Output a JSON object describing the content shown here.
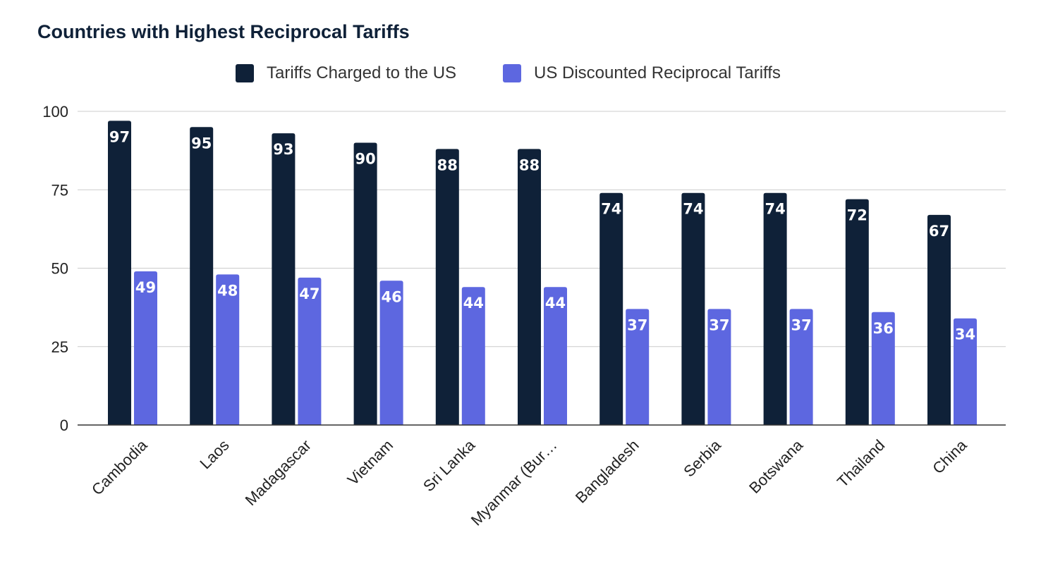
{
  "chart_data": {
    "type": "bar",
    "title": "Countries with Highest Reciprocal Tariffs",
    "xlabel": "",
    "ylabel": "",
    "ylim": [
      0,
      100
    ],
    "yticks": [
      "0",
      "25",
      "50",
      "75",
      "100"
    ],
    "ytick_values": [
      0,
      25,
      50,
      75,
      100
    ],
    "grid": true,
    "legend_position": "top-center",
    "categories": [
      "Cambodia",
      "Laos",
      "Madagascar",
      "Vietnam",
      "Sri Lanka",
      "Myanmar (Bur…",
      "Bangladesh",
      "Serbia",
      "Botswana",
      "Thailand",
      "China"
    ],
    "series": [
      {
        "name": "Tariffs Charged to the US",
        "color": "#0f2138",
        "values": [
          97,
          95,
          93,
          90,
          88,
          88,
          74,
          74,
          74,
          72,
          67
        ],
        "labels": [
          "97",
          "95",
          "93",
          "90",
          "88",
          "88",
          "74",
          "74",
          "74",
          "72",
          "67"
        ]
      },
      {
        "name": "US Discounted Reciprocal Tariffs",
        "color": "#5d67e0",
        "values": [
          49,
          48,
          47,
          46,
          44,
          44,
          37,
          37,
          37,
          36,
          34
        ],
        "labels": [
          "49",
          "48",
          "47",
          "46",
          "44",
          "44",
          "37",
          "37",
          "37",
          "36",
          "34"
        ]
      }
    ]
  },
  "colors": {
    "grid": "#cccccc",
    "axis": "#333333",
    "title": "#0f2138"
  }
}
